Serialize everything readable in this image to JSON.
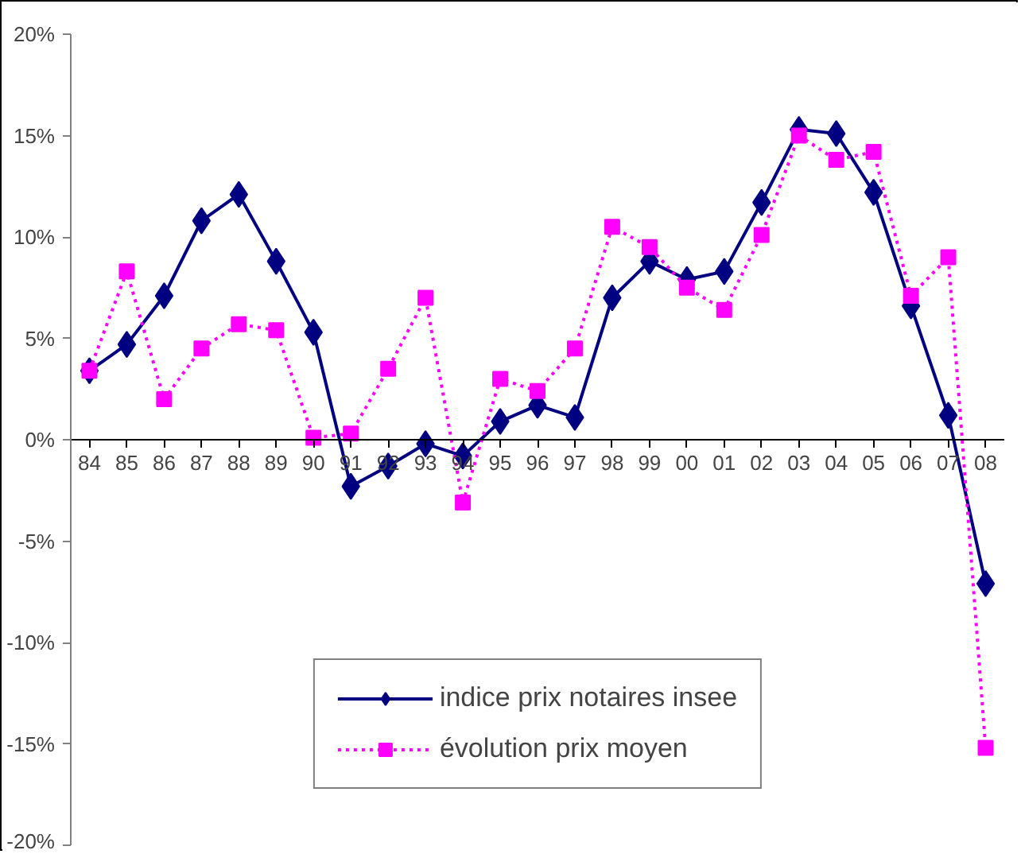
{
  "chart_data": {
    "type": "line",
    "categories": [
      "84",
      "85",
      "86",
      "87",
      "88",
      "89",
      "90",
      "91",
      "92",
      "93",
      "94",
      "95",
      "96",
      "97",
      "98",
      "99",
      "00",
      "01",
      "02",
      "03",
      "04",
      "05",
      "06",
      "07",
      "08"
    ],
    "series": [
      {
        "name": "indice prix notaires insee",
        "color": "#000080",
        "marker": "diamond",
        "line_style": "solid",
        "values": [
          3.4,
          4.7,
          7.1,
          10.8,
          12.1,
          8.8,
          5.3,
          -2.3,
          -1.3,
          -0.2,
          -0.8,
          0.9,
          1.7,
          1.1,
          7.0,
          8.8,
          7.9,
          8.3,
          11.7,
          15.3,
          15.1,
          12.2,
          6.6,
          1.2,
          -7.1
        ]
      },
      {
        "name": "évolution prix moyen",
        "color": "#ff00ff",
        "marker": "square",
        "line_style": "dotted",
        "values": [
          3.4,
          8.3,
          2.0,
          4.5,
          5.7,
          5.4,
          0.1,
          0.3,
          3.5,
          7.0,
          -3.1,
          3.0,
          2.4,
          4.5,
          10.5,
          9.5,
          7.5,
          6.4,
          10.1,
          15.0,
          13.8,
          14.2,
          7.1,
          9.0,
          -15.2
        ]
      }
    ],
    "ylim": [
      -20,
      20
    ],
    "yticks": [
      {
        "value": -20,
        "label": "-20%"
      },
      {
        "value": -15,
        "label": "-15%"
      },
      {
        "value": -10,
        "label": "-10%"
      },
      {
        "value": -5,
        "label": "-5%"
      },
      {
        "value": 0,
        "label": "0%"
      },
      {
        "value": 5,
        "label": "5%"
      },
      {
        "value": 10,
        "label": "10%"
      },
      {
        "value": 15,
        "label": "15%"
      },
      {
        "value": 20,
        "label": "20%"
      }
    ],
    "grid": false,
    "legend": "bottom"
  }
}
